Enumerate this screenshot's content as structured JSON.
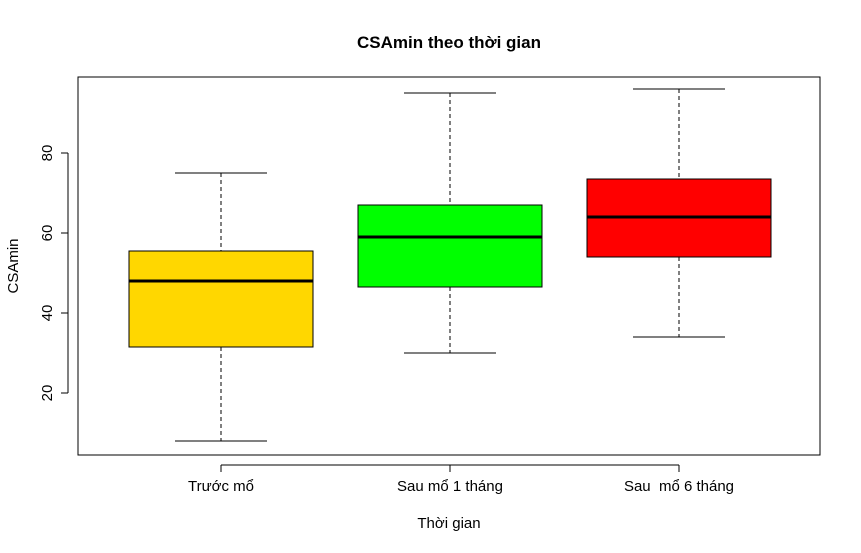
{
  "chart_data": {
    "type": "boxplot",
    "title": "CSAmin theo thời gian",
    "xlabel": "Thời gian",
    "ylabel": "CSAmin",
    "yticks": [
      20,
      40,
      60,
      80
    ],
    "ylim": [
      4.5,
      99
    ],
    "grid": false,
    "legend": "none",
    "categories": [
      "Trước mổ",
      "Sau mổ 1 tháng",
      "Sau  mổ 6 tháng"
    ],
    "boxes": [
      {
        "category": "Trước mổ",
        "color": "#FFD700",
        "min": 8,
        "q1": 31.5,
        "median": 48,
        "q3": 55.5,
        "max": 75
      },
      {
        "category": "Sau mổ 1 tháng",
        "color": "#00FF00",
        "min": 30,
        "q1": 46.5,
        "median": 59,
        "q3": 67,
        "max": 95
      },
      {
        "category": "Sau  mổ 6 tháng",
        "color": "#FF0000",
        "min": 34,
        "q1": 54,
        "median": 64,
        "q3": 73.5,
        "max": 96
      }
    ]
  }
}
